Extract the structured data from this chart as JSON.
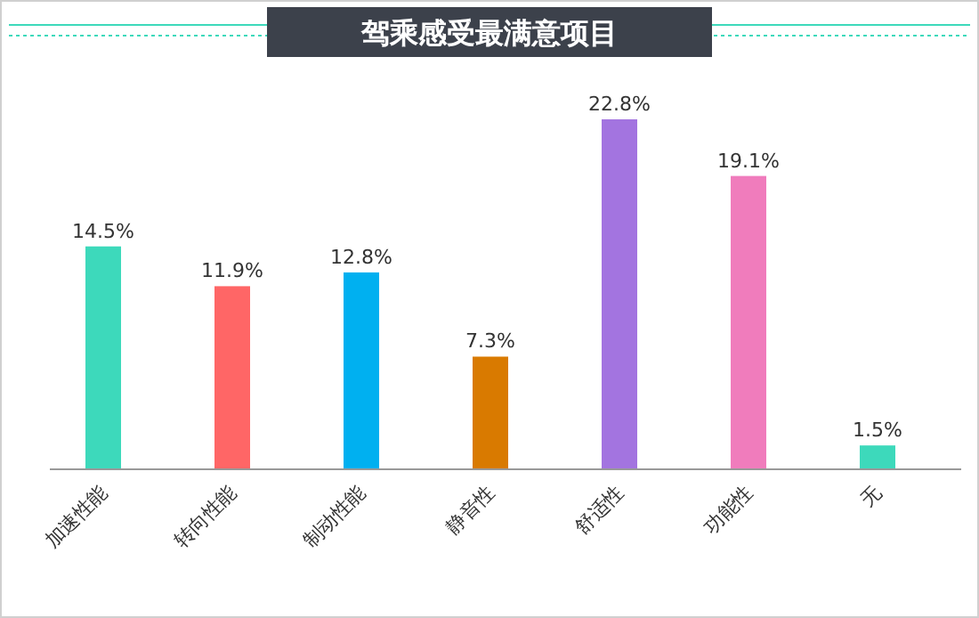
{
  "chart_data": {
    "type": "bar",
    "title": "驾乘感受最满意项目",
    "categories": [
      "加速性能",
      "转向性能",
      "制动性能",
      "静音性",
      "舒适性",
      "功能性",
      "无"
    ],
    "values": [
      14.5,
      11.9,
      12.8,
      7.3,
      22.8,
      19.1,
      1.5
    ],
    "value_labels": [
      "14.5%",
      "11.9%",
      "12.8%",
      "7.3%",
      "22.8%",
      "19.1%",
      "1.5%"
    ],
    "colors": [
      "#3dd9bb",
      "#ff6666",
      "#00b0f0",
      "#d97a00",
      "#a374e0",
      "#f07cbc",
      "#3dd9bb"
    ]
  }
}
